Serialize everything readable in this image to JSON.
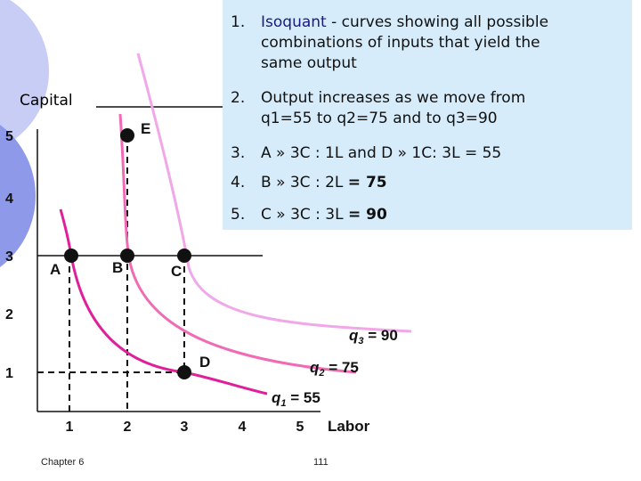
{
  "notes": [
    {
      "num": "1.",
      "lead": "Isoquant",
      "lines": [
        " - curves showing all possible",
        "combinations of inputs that yield the",
        "same output"
      ]
    },
    {
      "num": "2.",
      "lines": [
        "Output increases as we move from",
        "q1=55 to q2=75 and to q3=90"
      ]
    },
    {
      "num": "3.",
      "lines": [
        "A » 3C : 1L and D » 1C: 3L = 55"
      ]
    },
    {
      "num": "4.",
      "lines": [
        "B » 3C : 2L "
      ],
      "bold": "= 75"
    },
    {
      "num": "5.",
      "lines": [
        "C » 3C : 3L "
      ],
      "bold": "= 90"
    }
  ],
  "axes": {
    "y_label": "Capital",
    "x_label": "Labor",
    "y_ticks": [
      "5",
      "4",
      "3",
      "2",
      "1"
    ],
    "x_ticks": [
      "1",
      "2",
      "3",
      "4",
      "5"
    ]
  },
  "points": [
    "A",
    "B",
    "C",
    "D",
    "E"
  ],
  "curves": [
    {
      "q": "q",
      "sub": "3",
      "eq": " = 90"
    },
    {
      "q": "q",
      "sub": "2",
      "eq": " = 75"
    },
    {
      "q": "q",
      "sub": "1",
      "eq": " = 55"
    }
  ],
  "footer": {
    "left": "Chapter 6",
    "page": "111"
  }
}
